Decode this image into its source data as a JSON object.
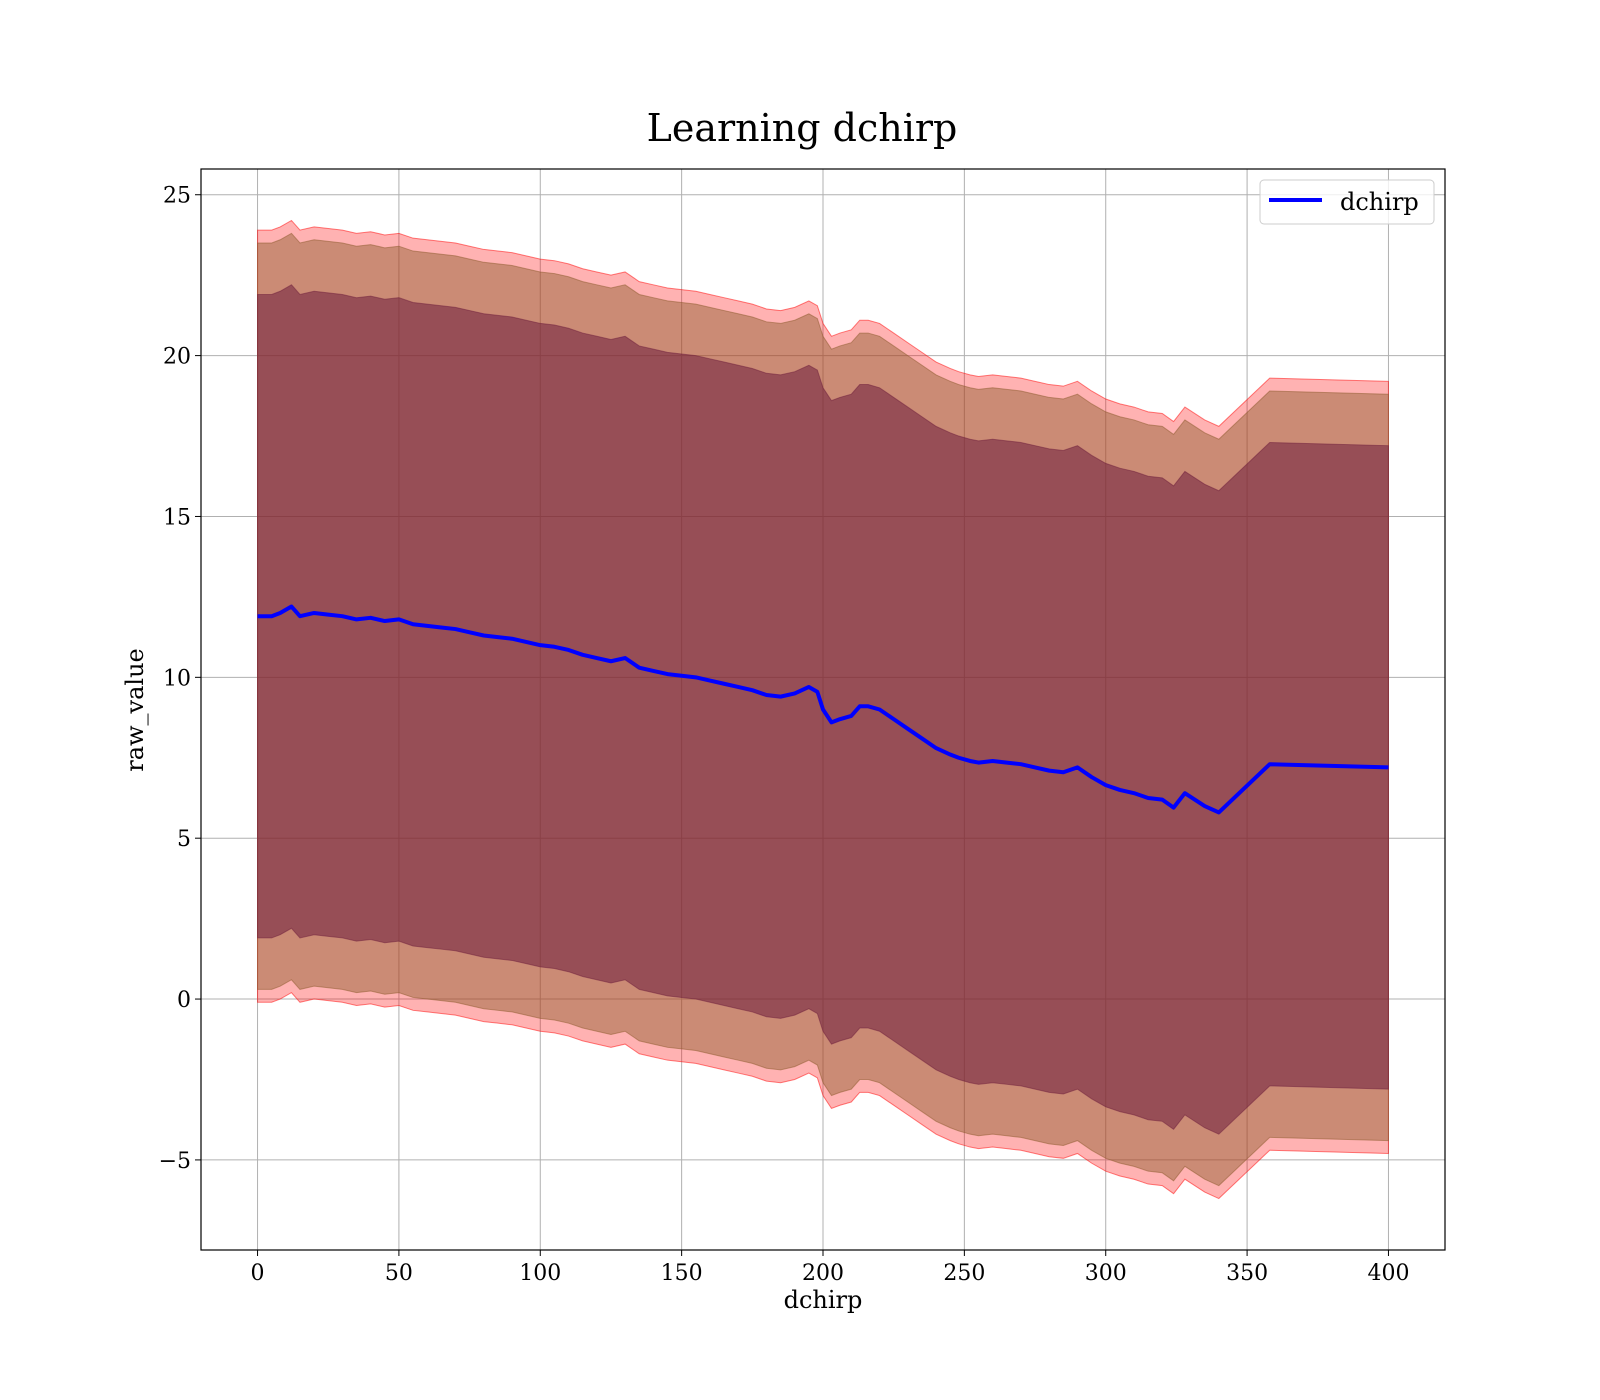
{
  "chart_data": {
    "type": "line",
    "title": "Learning dchirp",
    "xlabel": "dchirp",
    "ylabel": "raw_value",
    "xlim": [
      -20,
      420
    ],
    "ylim": [
      -7.8,
      25.8
    ],
    "xticks": [
      0,
      50,
      100,
      150,
      200,
      250,
      300,
      350,
      400
    ],
    "yticks": [
      -5,
      0,
      5,
      10,
      15,
      20,
      25
    ],
    "ytick_labels": [
      "−5",
      "0",
      "5",
      "10",
      "15",
      "20",
      "25"
    ],
    "grid": true,
    "legend": {
      "position": "top-right",
      "entries": [
        "dchirp"
      ]
    },
    "colors": {
      "line": "#0000ff",
      "band_outer": "#ff0000",
      "band_middle": "#8b5a2b",
      "band_inner": "#6e1e3c"
    },
    "series": [
      {
        "name": "dchirp",
        "x": [
          0,
          5,
          8,
          12,
          15,
          20,
          25,
          30,
          35,
          40,
          45,
          50,
          55,
          60,
          65,
          70,
          75,
          80,
          85,
          90,
          95,
          100,
          105,
          110,
          115,
          120,
          125,
          130,
          135,
          140,
          145,
          150,
          155,
          160,
          165,
          170,
          175,
          180,
          185,
          190,
          195,
          198,
          200,
          203,
          206,
          210,
          213,
          216,
          220,
          225,
          230,
          235,
          240,
          245,
          248,
          252,
          255,
          260,
          265,
          270,
          275,
          280,
          285,
          290,
          295,
          300,
          305,
          310,
          315,
          320,
          324,
          328,
          335,
          340,
          358,
          400
        ],
        "y": [
          11.9,
          11.9,
          12.0,
          12.2,
          11.9,
          12.0,
          11.95,
          11.9,
          11.8,
          11.85,
          11.75,
          11.8,
          11.65,
          11.6,
          11.55,
          11.5,
          11.4,
          11.3,
          11.25,
          11.2,
          11.1,
          11.0,
          10.95,
          10.85,
          10.7,
          10.6,
          10.5,
          10.6,
          10.3,
          10.2,
          10.1,
          10.05,
          10.0,
          9.9,
          9.8,
          9.7,
          9.6,
          9.45,
          9.4,
          9.5,
          9.7,
          9.55,
          9.0,
          8.6,
          8.7,
          8.8,
          9.1,
          9.1,
          9.0,
          8.7,
          8.4,
          8.1,
          7.8,
          7.6,
          7.5,
          7.4,
          7.35,
          7.4,
          7.35,
          7.3,
          7.2,
          7.1,
          7.05,
          7.2,
          6.9,
          6.65,
          6.5,
          6.4,
          6.25,
          6.2,
          5.95,
          6.4,
          6.0,
          5.8,
          7.3,
          7.2
        ]
      }
    ],
    "bands": [
      {
        "name": "outer",
        "x_ref": "series.0.x",
        "half_width": 12.0
      },
      {
        "name": "middle",
        "x_ref": "series.0.x",
        "half_width": 11.6
      },
      {
        "name": "inner",
        "x_ref": "series.0.x",
        "half_width": 10.0
      }
    ]
  }
}
